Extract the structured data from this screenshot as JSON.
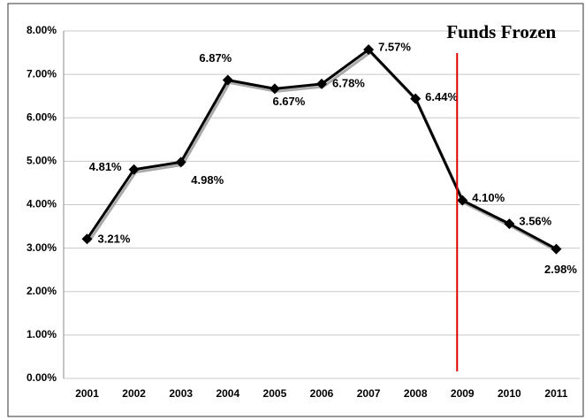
{
  "chart_data": {
    "type": "line",
    "categories": [
      "2001",
      "2002",
      "2003",
      "2004",
      "2005",
      "2006",
      "2007",
      "2008",
      "2009",
      "2010",
      "2011"
    ],
    "series": [
      {
        "color": "#000000",
        "values": [
          3.21,
          4.81,
          4.98,
          6.87,
          6.67,
          6.78,
          7.57,
          6.44,
          4.1,
          3.56,
          2.98
        ],
        "value_labels": [
          "3.21%",
          "4.81%",
          "4.98%",
          "6.87%",
          "6.67%",
          "6.78%",
          "7.57%",
          "6.44%",
          "4.10%",
          "3.56%",
          "2.98%"
        ]
      }
    ],
    "ylim": [
      0,
      8
    ],
    "yticks": [
      {
        "value": 0,
        "label": "0.00%"
      },
      {
        "value": 1,
        "label": "1.00%"
      },
      {
        "value": 2,
        "label": "2.00%"
      },
      {
        "value": 3,
        "label": "3.00%"
      },
      {
        "value": 4,
        "label": "4.00%"
      },
      {
        "value": 5,
        "label": "5.00%"
      },
      {
        "value": 6,
        "label": "6.00%"
      },
      {
        "value": 7,
        "label": "7.00%"
      },
      {
        "value": 8,
        "label": "8.00%"
      }
    ],
    "grid": true,
    "annotations": [
      {
        "text": "Funds Frozen",
        "x": "2009",
        "color": "#e00000"
      }
    ]
  }
}
